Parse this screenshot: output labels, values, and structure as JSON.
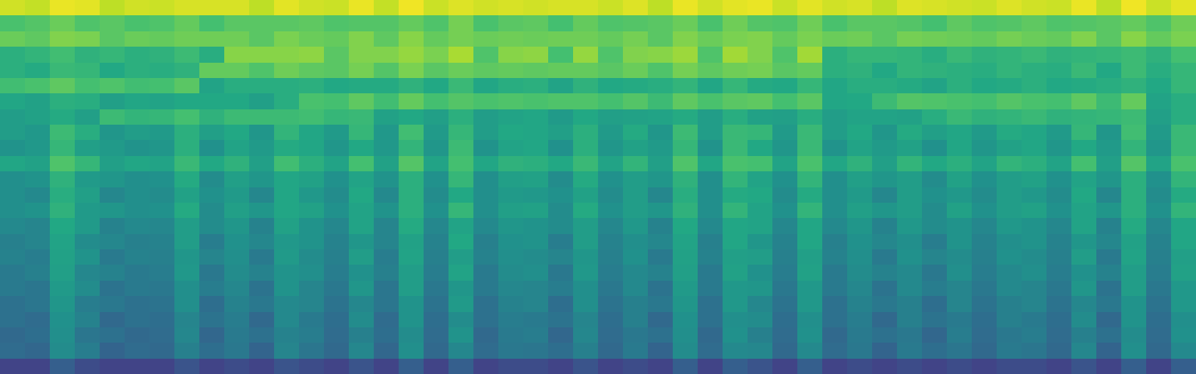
{
  "chart_data": {
    "type": "heatmap",
    "tick_labels": false,
    "color": "viridis",
    "zlim": [
      0,
      100
    ],
    "cells": [
      [
        93,
        91,
        97,
        96,
        90,
        93,
        92,
        94,
        94,
        94,
        90,
        96,
        93,
        92,
        97,
        91,
        98,
        92,
        95,
        93,
        94,
        93,
        94,
        94,
        92,
        95,
        90,
        97,
        93,
        96,
        97,
        92,
        96,
        93,
        94,
        90,
        95,
        94,
        93,
        92,
        95,
        93,
        92,
        97,
        90,
        98,
        92,
        96
      ],
      [
        71,
        73,
        77,
        72,
        74,
        71,
        72,
        76,
        70,
        74,
        74,
        74,
        75,
        72,
        73,
        73,
        76,
        72,
        79,
        71,
        74,
        75,
        70,
        76,
        72,
        73,
        74,
        77,
        71,
        78,
        73,
        72,
        78,
        71,
        74,
        74,
        73,
        70,
        75,
        72,
        73,
        75,
        72,
        73,
        74,
        76,
        72,
        78
      ],
      [
        77,
        75,
        81,
        80,
        74,
        77,
        76,
        78,
        78,
        78,
        74,
        80,
        77,
        76,
        81,
        75,
        82,
        76,
        79,
        77,
        78,
        77,
        78,
        78,
        76,
        79,
        74,
        81,
        77,
        80,
        81,
        76,
        80,
        77,
        78,
        74,
        79,
        78,
        77,
        76,
        79,
        77,
        76,
        81,
        74,
        82,
        76,
        80
      ],
      [
        63,
        65,
        69,
        64,
        66,
        63,
        64,
        68,
        62,
        82,
        82,
        82,
        83,
        74,
        81,
        81,
        84,
        80,
        87,
        72,
        82,
        83,
        70,
        84,
        72,
        81,
        82,
        85,
        72,
        86,
        81,
        72,
        86,
        63,
        66,
        66,
        65,
        62,
        67,
        64,
        65,
        67,
        64,
        65,
        66,
        68,
        64,
        70
      ],
      [
        63,
        61,
        67,
        66,
        60,
        63,
        62,
        64,
        76,
        76,
        72,
        78,
        75,
        74,
        79,
        73,
        80,
        74,
        77,
        75,
        76,
        75,
        76,
        76,
        74,
        77,
        72,
        79,
        75,
        78,
        79,
        74,
        76,
        63,
        64,
        60,
        65,
        64,
        63,
        62,
        65,
        63,
        62,
        67,
        60,
        68,
        62,
        66
      ],
      [
        69,
        71,
        75,
        70,
        72,
        69,
        70,
        74,
        58,
        62,
        62,
        62,
        63,
        60,
        61,
        61,
        64,
        60,
        67,
        59,
        62,
        63,
        58,
        64,
        60,
        61,
        62,
        65,
        59,
        66,
        61,
        60,
        66,
        59,
        62,
        62,
        61,
        58,
        63,
        60,
        61,
        63,
        60,
        61,
        62,
        64,
        60,
        66
      ],
      [
        59,
        57,
        63,
        62,
        56,
        59,
        58,
        60,
        60,
        60,
        56,
        62,
        71,
        70,
        75,
        69,
        76,
        70,
        73,
        71,
        72,
        71,
        72,
        72,
        70,
        73,
        68,
        75,
        71,
        74,
        75,
        70,
        74,
        59,
        60,
        68,
        73,
        72,
        71,
        70,
        73,
        71,
        70,
        75,
        68,
        76,
        58,
        62
      ],
      [
        55,
        57,
        61,
        56,
        68,
        65,
        66,
        70,
        64,
        68,
        68,
        68,
        69,
        66,
        67,
        57,
        60,
        56,
        63,
        55,
        58,
        59,
        54,
        60,
        56,
        57,
        58,
        61,
        55,
        62,
        57,
        56,
        62,
        55,
        58,
        58,
        57,
        62,
        67,
        64,
        65,
        67,
        64,
        65,
        66,
        68,
        56,
        62
      ],
      [
        55,
        53,
        68,
        62,
        52,
        55,
        54,
        63,
        56,
        60,
        52,
        65,
        59,
        54,
        66,
        53,
        69,
        54,
        66,
        55,
        60,
        59,
        56,
        63,
        54,
        61,
        52,
        68,
        55,
        67,
        66,
        54,
        67,
        55,
        60,
        52,
        61,
        56,
        59,
        54,
        61,
        59,
        54,
        66,
        52,
        69,
        54,
        67
      ],
      [
        51,
        53,
        66,
        56,
        54,
        51,
        52,
        63,
        50,
        58,
        54,
        61,
        59,
        52,
        60,
        53,
        65,
        52,
        68,
        51,
        58,
        59,
        50,
        63,
        52,
        57,
        54,
        66,
        51,
        67,
        60,
        52,
        67,
        51,
        58,
        54,
        57,
        50,
        59,
        52,
        57,
        59,
        52,
        60,
        54,
        65,
        52,
        67
      ],
      [
        59,
        57,
        72,
        66,
        56,
        59,
        58,
        67,
        60,
        64,
        56,
        69,
        63,
        58,
        70,
        57,
        73,
        58,
        70,
        59,
        64,
        63,
        60,
        67,
        58,
        65,
        56,
        72,
        59,
        71,
        70,
        58,
        71,
        59,
        64,
        56,
        65,
        60,
        63,
        58,
        65,
        63,
        58,
        70,
        56,
        73,
        58,
        71
      ],
      [
        49,
        51,
        64,
        54,
        52,
        49,
        50,
        61,
        48,
        56,
        52,
        59,
        57,
        50,
        58,
        51,
        63,
        50,
        66,
        49,
        56,
        57,
        48,
        61,
        50,
        55,
        52,
        64,
        49,
        65,
        58,
        50,
        65,
        49,
        56,
        52,
        55,
        48,
        57,
        50,
        55,
        57,
        50,
        58,
        52,
        63,
        50,
        65
      ],
      [
        49,
        47,
        62,
        56,
        46,
        49,
        48,
        57,
        50,
        54,
        46,
        59,
        53,
        48,
        60,
        47,
        63,
        48,
        60,
        49,
        54,
        53,
        50,
        57,
        48,
        55,
        46,
        62,
        49,
        61,
        60,
        48,
        61,
        49,
        54,
        46,
        55,
        50,
        53,
        48,
        55,
        53,
        48,
        60,
        46,
        63,
        48,
        61
      ],
      [
        49,
        51,
        64,
        54,
        52,
        49,
        50,
        61,
        48,
        56,
        52,
        59,
        57,
        50,
        58,
        51,
        63,
        50,
        66,
        49,
        56,
        57,
        48,
        61,
        50,
        55,
        52,
        64,
        49,
        65,
        58,
        50,
        65,
        49,
        56,
        52,
        55,
        48,
        57,
        50,
        55,
        57,
        50,
        58,
        52,
        63,
        50,
        65
      ],
      [
        47,
        45,
        60,
        54,
        44,
        47,
        46,
        55,
        48,
        52,
        44,
        57,
        51,
        46,
        58,
        45,
        61,
        46,
        58,
        47,
        52,
        51,
        48,
        55,
        46,
        53,
        44,
        60,
        47,
        59,
        58,
        46,
        59,
        47,
        52,
        44,
        53,
        48,
        51,
        46,
        53,
        51,
        46,
        58,
        44,
        61,
        46,
        59
      ],
      [
        43,
        45,
        58,
        48,
        46,
        43,
        44,
        55,
        42,
        50,
        46,
        53,
        51,
        44,
        52,
        45,
        57,
        44,
        60,
        43,
        50,
        51,
        42,
        55,
        44,
        49,
        46,
        58,
        43,
        59,
        52,
        44,
        59,
        43,
        50,
        46,
        49,
        42,
        51,
        44,
        49,
        51,
        44,
        52,
        46,
        57,
        44,
        59
      ],
      [
        44,
        42,
        57,
        51,
        41,
        44,
        43,
        52,
        45,
        49,
        41,
        54,
        48,
        43,
        55,
        42,
        58,
        43,
        55,
        44,
        49,
        48,
        45,
        52,
        43,
        50,
        41,
        57,
        44,
        56,
        55,
        43,
        56,
        44,
        49,
        41,
        50,
        45,
        48,
        43,
        50,
        48,
        43,
        55,
        41,
        58,
        43,
        56
      ],
      [
        41,
        43,
        56,
        46,
        44,
        41,
        42,
        53,
        40,
        48,
        44,
        51,
        49,
        42,
        50,
        43,
        55,
        42,
        58,
        41,
        48,
        49,
        40,
        53,
        42,
        47,
        44,
        56,
        41,
        57,
        50,
        42,
        57,
        41,
        48,
        44,
        47,
        40,
        49,
        42,
        47,
        49,
        42,
        50,
        44,
        55,
        42,
        57
      ],
      [
        41,
        39,
        54,
        48,
        38,
        41,
        40,
        49,
        42,
        46,
        38,
        51,
        45,
        40,
        52,
        39,
        55,
        40,
        52,
        41,
        46,
        45,
        42,
        49,
        40,
        47,
        38,
        54,
        41,
        53,
        52,
        40,
        53,
        41,
        46,
        38,
        47,
        42,
        45,
        40,
        47,
        45,
        40,
        52,
        38,
        55,
        40,
        53
      ],
      [
        37,
        39,
        52,
        42,
        40,
        37,
        38,
        49,
        36,
        44,
        40,
        47,
        45,
        38,
        46,
        39,
        51,
        38,
        54,
        37,
        44,
        45,
        36,
        49,
        38,
        43,
        40,
        52,
        37,
        53,
        46,
        38,
        53,
        37,
        44,
        40,
        43,
        36,
        45,
        38,
        43,
        45,
        38,
        46,
        40,
        51,
        38,
        53
      ],
      [
        37,
        35,
        50,
        44,
        34,
        37,
        36,
        45,
        38,
        42,
        34,
        47,
        41,
        36,
        48,
        35,
        51,
        36,
        48,
        37,
        42,
        41,
        38,
        45,
        36,
        43,
        34,
        50,
        37,
        49,
        48,
        36,
        49,
        37,
        42,
        34,
        43,
        38,
        41,
        36,
        43,
        41,
        36,
        48,
        34,
        51,
        36,
        49
      ],
      [
        34,
        36,
        49,
        39,
        37,
        34,
        35,
        46,
        33,
        41,
        37,
        44,
        42,
        35,
        43,
        36,
        48,
        35,
        51,
        34,
        41,
        42,
        33,
        46,
        35,
        40,
        37,
        49,
        34,
        50,
        43,
        35,
        50,
        34,
        41,
        37,
        40,
        33,
        42,
        35,
        40,
        42,
        35,
        43,
        37,
        48,
        35,
        50
      ],
      [
        35,
        33,
        48,
        42,
        32,
        35,
        34,
        43,
        36,
        40,
        32,
        45,
        39,
        34,
        46,
        33,
        49,
        34,
        46,
        35,
        40,
        39,
        36,
        43,
        34,
        41,
        32,
        48,
        35,
        47,
        46,
        34,
        47,
        35,
        40,
        32,
        41,
        36,
        39,
        34,
        41,
        39,
        34,
        46,
        32,
        49,
        34,
        47
      ],
      [
        20,
        20,
        30,
        23,
        20,
        20,
        20,
        26,
        20,
        23,
        20,
        26,
        23,
        20,
        26,
        20,
        30,
        20,
        30,
        20,
        23,
        23,
        20,
        26,
        20,
        23,
        20,
        30,
        20,
        30,
        26,
        20,
        30,
        20,
        23,
        20,
        23,
        20,
        23,
        20,
        23,
        23,
        20,
        26,
        20,
        30,
        20,
        30
      ]
    ]
  }
}
